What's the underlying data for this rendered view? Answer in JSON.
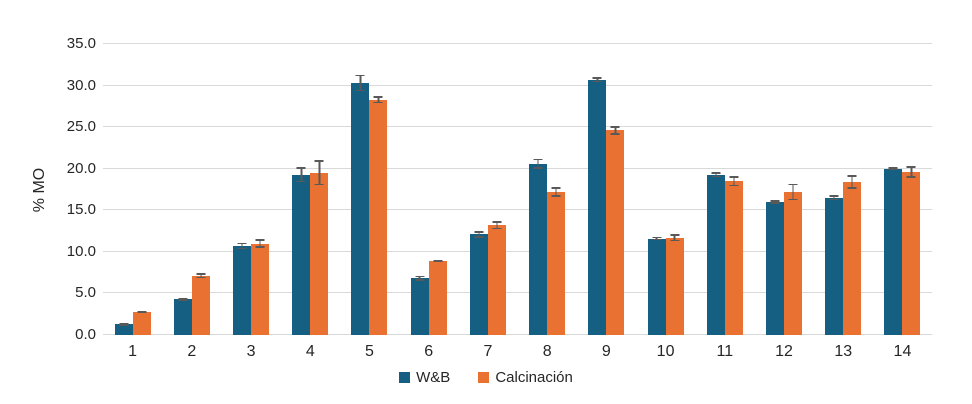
{
  "chart_data": {
    "type": "bar",
    "title": "",
    "xlabel": "",
    "ylabel": "% MO",
    "ylim": [
      0,
      35
    ],
    "ytick_step": 5,
    "ytick_labels": [
      "0.0",
      "5.0",
      "10.0",
      "15.0",
      "20.0",
      "25.0",
      "30.0",
      "35.0"
    ],
    "grid": true,
    "gridline_color": "#d9d9d9",
    "error_bar_color": "#595959",
    "background_color": "#ffffff",
    "text_color": "#262626",
    "legend_position": "bottom-center",
    "categories": [
      "1",
      "2",
      "3",
      "4",
      "5",
      "6",
      "7",
      "8",
      "9",
      "10",
      "11",
      "12",
      "13",
      "14"
    ],
    "series": [
      {
        "name": "W&B",
        "color": "#156082",
        "values": [
          1.3,
          4.3,
          10.7,
          19.3,
          30.3,
          6.8,
          12.1,
          20.6,
          30.7,
          11.6,
          19.3,
          16.0,
          16.5,
          20.0
        ],
        "errors": [
          0.2,
          0.2,
          0.4,
          0.9,
          1.0,
          0.3,
          0.4,
          0.6,
          0.3,
          0.2,
          0.3,
          0.2,
          0.3,
          0.2
        ]
      },
      {
        "name": "Calcinación",
        "color": "#E97132",
        "values": [
          2.8,
          7.1,
          11.0,
          19.5,
          28.3,
          8.9,
          13.2,
          17.2,
          24.6,
          11.7,
          18.5,
          17.2,
          18.4,
          19.6
        ],
        "errors": [
          0.1,
          0.3,
          0.5,
          1.5,
          0.4,
          0.15,
          0.5,
          0.6,
          0.5,
          0.4,
          0.6,
          1.0,
          0.8,
          0.7
        ]
      }
    ]
  }
}
